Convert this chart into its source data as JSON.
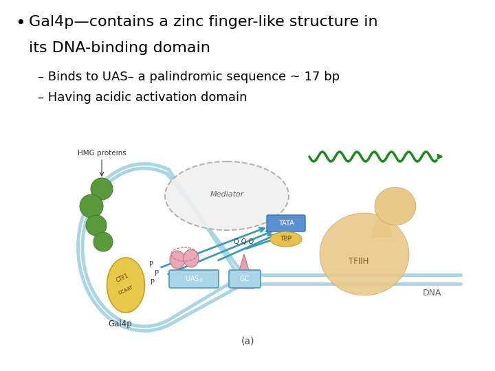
{
  "background_color": "#ffffff",
  "bullet_text_line1a": "Gal4p—contains a zinc finger-like structure in",
  "bullet_text_line1b": "its DNA-binding domain",
  "sub_bullet1": "– Binds to UAS– a palindromic sequence ~ 17 bp",
  "sub_bullet2": "– Having acidic activation domain",
  "text_color": "#000000",
  "bullet_fontsize": 16,
  "sub_bullet_fontsize": 13,
  "fig_width": 7.2,
  "fig_height": 5.4,
  "dpi": 100,
  "dna_color": "#aad4e8",
  "hmg_color": "#5a9a3a",
  "gal4p_color": "#e8c84a",
  "sp1_color": "#e8a0b0",
  "arrow_color": "#3a9ab8",
  "rna_color": "#1a8a1a",
  "tfiih_color": "#e8c98a",
  "mediator_color": "#f0f0f0",
  "tata_color": "#5a90d0",
  "tbp_color": "#e8c050"
}
